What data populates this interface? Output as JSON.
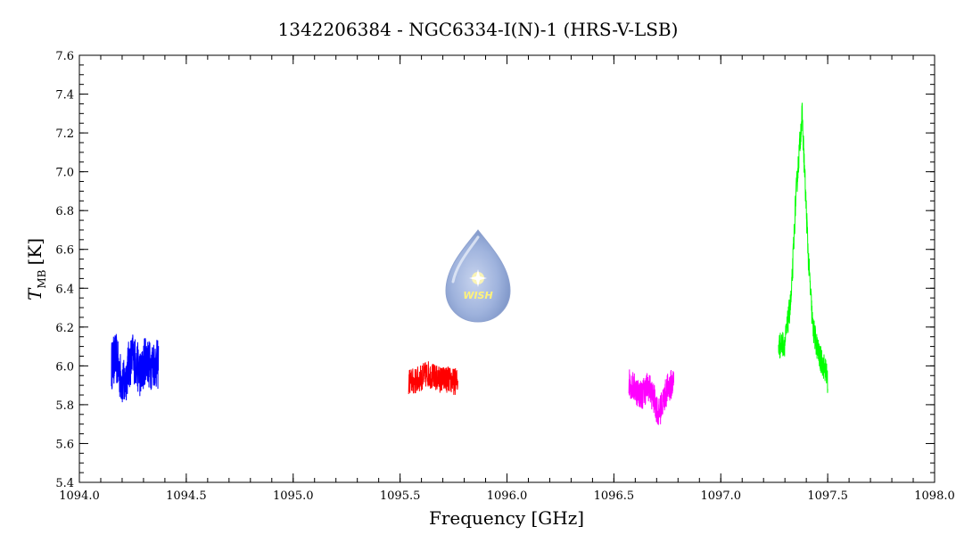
{
  "chart_data": {
    "type": "line",
    "title": "1342206384 - NGC6334-I(N)-1 (HRS-V-LSB)",
    "xlabel": "Frequency [GHz]",
    "ylabel_main": "T",
    "ylabel_sub": "MB",
    "ylabel_unit": "[K]",
    "xlim": [
      1094.0,
      1098.0
    ],
    "ylim": [
      5.4,
      7.6
    ],
    "xticks": [
      "1094.0",
      "1094.5",
      "1095.0",
      "1095.5",
      "1096.0",
      "1096.5",
      "1097.0",
      "1097.5",
      "1098.0"
    ],
    "yticks": [
      "5.4",
      "5.6",
      "5.8",
      "6.0",
      "6.2",
      "6.4",
      "6.6",
      "6.8",
      "7.0",
      "7.2",
      "7.4",
      "7.6"
    ],
    "grid": false,
    "logo_text": "WISH",
    "series": [
      {
        "color": "#0000ff",
        "x": [
          1094.15,
          1094.17,
          1094.19,
          1094.21,
          1094.23,
          1094.25,
          1094.27,
          1094.29,
          1094.31,
          1094.33,
          1094.35,
          1094.37
        ],
        "y": [
          6.0,
          6.05,
          5.95,
          5.9,
          6.0,
          6.05,
          6.0,
          5.95,
          6.05,
          6.0,
          6.02,
          6.0
        ],
        "noise": 0.13
      },
      {
        "color": "#ff0000",
        "x": [
          1095.54,
          1095.57,
          1095.6,
          1095.63,
          1095.66,
          1095.69,
          1095.72,
          1095.75,
          1095.77
        ],
        "y": [
          5.92,
          5.92,
          5.94,
          5.96,
          5.94,
          5.93,
          5.93,
          5.92,
          5.92
        ],
        "noise": 0.07
      },
      {
        "color": "#ff00ff",
        "x": [
          1096.57,
          1096.6,
          1096.63,
          1096.66,
          1096.69,
          1096.71,
          1096.73,
          1096.75,
          1096.78
        ],
        "y": [
          5.92,
          5.88,
          5.85,
          5.9,
          5.82,
          5.75,
          5.82,
          5.88,
          5.92
        ],
        "noise": 0.08
      },
      {
        "color": "#00ff00",
        "x": [
          1097.27,
          1097.3,
          1097.33,
          1097.35,
          1097.37,
          1097.38,
          1097.39,
          1097.41,
          1097.43,
          1097.46,
          1097.49,
          1097.5
        ],
        "y": [
          6.1,
          6.12,
          6.35,
          6.85,
          7.15,
          7.3,
          7.05,
          6.55,
          6.2,
          6.05,
          5.98,
          5.92
        ],
        "noise": 0.07
      }
    ]
  }
}
